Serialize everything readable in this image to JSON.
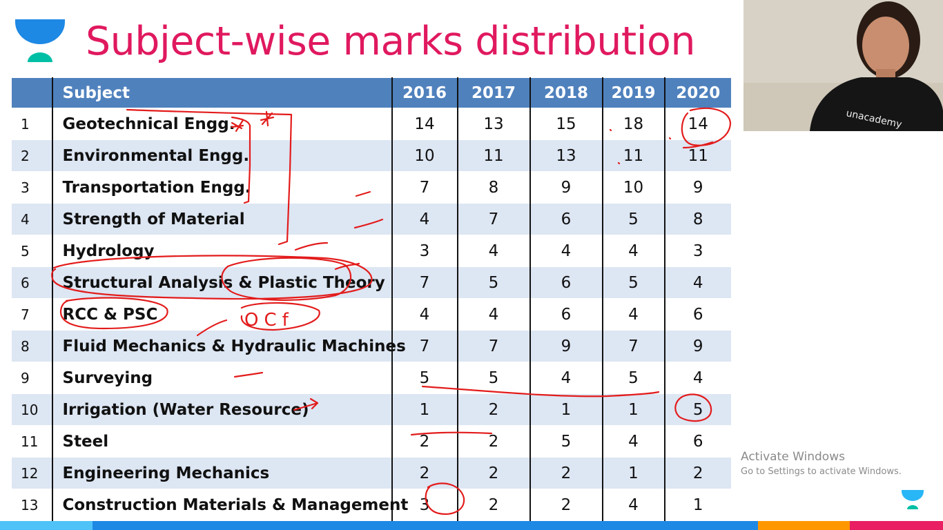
{
  "slide": {
    "title": "Subject-wise marks distribution",
    "logo_icon": "unacademy-logo-icon",
    "colors": {
      "title": "#e0195f",
      "header_bg": "#4f81bd",
      "row_alt_bg": "#dde6f3",
      "annotation_ink": "#e31b1b",
      "logo_blue": "#1e88e5",
      "logo_green": "#00bfa5"
    }
  },
  "table": {
    "columns": [
      "",
      "Subject",
      "2016",
      "2017",
      "2018",
      "2019",
      "2020"
    ],
    "rows": [
      {
        "no": "1",
        "subject": "Geotechnical Engg.",
        "v": [
          "14",
          "13",
          "15",
          "18",
          "14"
        ]
      },
      {
        "no": "2",
        "subject": "Environmental Engg.",
        "v": [
          "10",
          "11",
          "13",
          "11",
          "11"
        ]
      },
      {
        "no": "3",
        "subject": "Transportation Engg.",
        "v": [
          "7",
          "8",
          "9",
          "10",
          "9"
        ]
      },
      {
        "no": "4",
        "subject": "Strength of Material",
        "v": [
          "4",
          "7",
          "6",
          "5",
          "8"
        ]
      },
      {
        "no": "5",
        "subject": "Hydrology",
        "v": [
          "3",
          "4",
          "4",
          "4",
          "3"
        ]
      },
      {
        "no": "6",
        "subject": "Structural Analysis & Plastic Theory",
        "v": [
          "7",
          "5",
          "6",
          "5",
          "4"
        ]
      },
      {
        "no": "7",
        "subject": "RCC & PSC",
        "v": [
          "4",
          "4",
          "6",
          "4",
          "6"
        ]
      },
      {
        "no": "8",
        "subject": "Fluid Mechanics & Hydraulic Machines",
        "v": [
          "7",
          "7",
          "9",
          "7",
          "9"
        ]
      },
      {
        "no": "9",
        "subject": "Surveying",
        "v": [
          "5",
          "5",
          "4",
          "5",
          "4"
        ]
      },
      {
        "no": "10",
        "subject": "Irrigation (Water Resource)",
        "v": [
          "1",
          "2",
          "1",
          "1",
          "5"
        ]
      },
      {
        "no": "11",
        "subject": "Steel",
        "v": [
          "2",
          "2",
          "5",
          "4",
          "6"
        ]
      },
      {
        "no": "12",
        "subject": "Engineering Mechanics",
        "v": [
          "2",
          "2",
          "2",
          "1",
          "2"
        ]
      },
      {
        "no": "13",
        "subject": "Construction Materials & Management",
        "v": [
          "3",
          "2",
          "2",
          "4",
          "1"
        ]
      }
    ]
  },
  "annotations": {
    "handwritten_ocf": "OCf"
  },
  "webcam": {
    "shirt_text": "unacademy"
  },
  "watermark": {
    "title": "Activate Windows",
    "subtitle": "Go to Settings to activate Windows."
  },
  "bottom_bar": {
    "segments": [
      "#4fc3f7",
      "#1e88e5",
      "#ff9800",
      "#e91e63"
    ]
  }
}
